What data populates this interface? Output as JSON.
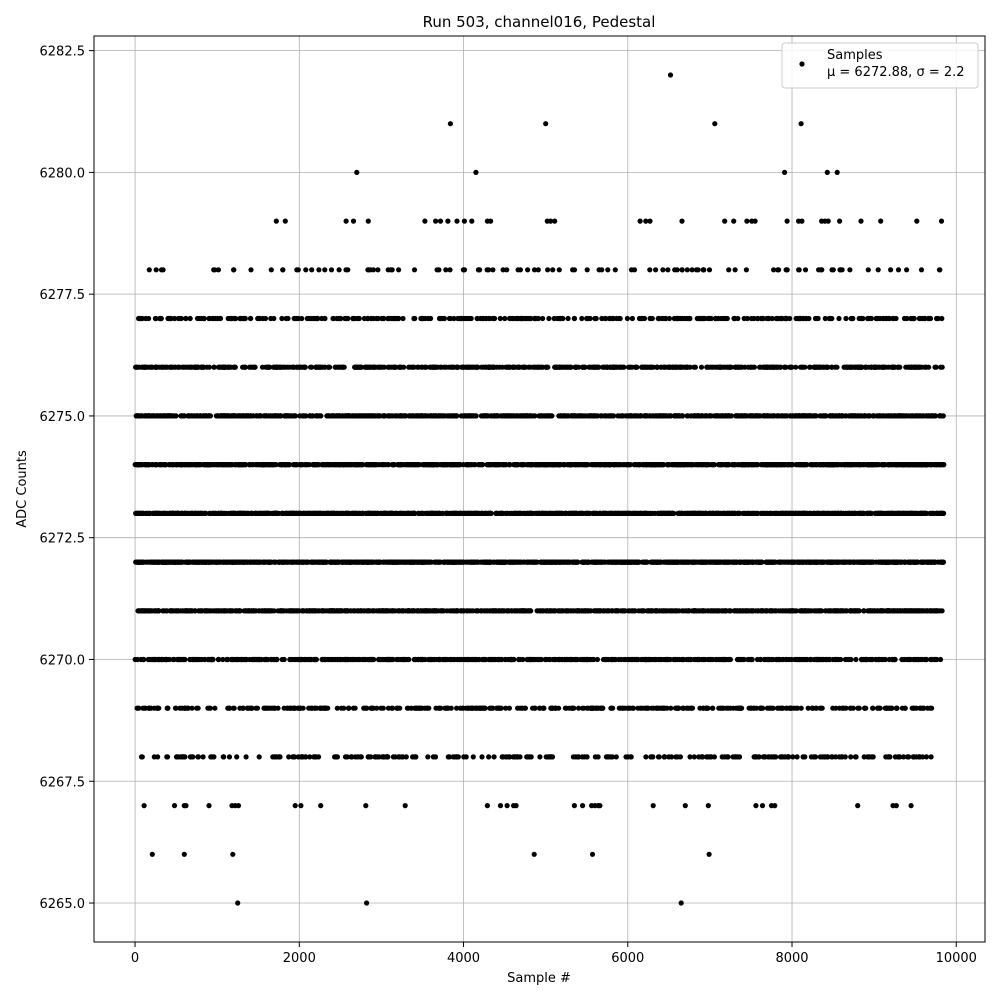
{
  "chart_data": {
    "type": "scatter",
    "title": "Run 503, channel016, Pedestal",
    "xlabel": "Sample #",
    "ylabel": "ADC Counts",
    "xlim": [
      -500,
      10350
    ],
    "ylim": [
      6264.2,
      6282.8
    ],
    "xticks": [
      0,
      2000,
      4000,
      6000,
      8000,
      10000
    ],
    "xtick_labels": [
      "0",
      "2000",
      "4000",
      "6000",
      "8000",
      "10000"
    ],
    "yticks": [
      6265.0,
      6267.5,
      6270.0,
      6272.5,
      6275.0,
      6277.5,
      6280.0,
      6282.5
    ],
    "ytick_labels": [
      "6265.0",
      "6267.5",
      "6270.0",
      "6272.5",
      "6275.0",
      "6277.5",
      "6280.0",
      "6282.5"
    ],
    "grid": true,
    "marker_color": "#000000",
    "legend": {
      "position": "upper-right",
      "entries": [
        "Samples",
        "μ = 6272.88, σ = 2.2"
      ]
    },
    "series": [
      {
        "name": "Samples",
        "color": "#000000",
        "points": [
          [
            1250,
            6265
          ],
          [
            2820,
            6265
          ],
          [
            6650,
            6265
          ],
          [
            210,
            6266
          ],
          [
            600,
            6266
          ],
          [
            1190,
            6266
          ],
          [
            4860,
            6266
          ],
          [
            5570,
            6266
          ],
          [
            6990,
            6266
          ],
          [
            110,
            6267
          ],
          [
            480,
            6267
          ],
          [
            600,
            6267
          ],
          [
            620,
            6267
          ],
          [
            900,
            6267
          ],
          [
            1180,
            6267
          ],
          [
            1220,
            6267
          ],
          [
            1260,
            6267
          ],
          [
            1950,
            6267
          ],
          [
            2020,
            6267
          ],
          [
            2260,
            6267
          ],
          [
            2810,
            6267
          ],
          [
            3290,
            6267
          ],
          [
            4290,
            6267
          ],
          [
            4450,
            6267
          ],
          [
            4530,
            6267
          ],
          [
            4610,
            6267
          ],
          [
            4640,
            6267
          ],
          [
            5350,
            6267
          ],
          [
            5450,
            6267
          ],
          [
            5560,
            6267
          ],
          [
            5600,
            6267
          ],
          [
            5640,
            6267
          ],
          [
            5660,
            6267
          ],
          [
            6310,
            6267
          ],
          [
            6700,
            6267
          ],
          [
            6980,
            6267
          ],
          [
            7560,
            6267
          ],
          [
            7640,
            6267
          ],
          [
            7750,
            6267
          ],
          [
            7790,
            6267
          ],
          [
            8800,
            6267
          ],
          [
            9230,
            6267
          ],
          [
            9270,
            6267
          ],
          [
            9450,
            6267
          ],
          [
            6520,
            6282
          ],
          [
            3840,
            6281
          ],
          [
            5000,
            6281
          ],
          [
            7060,
            6281
          ],
          [
            8110,
            6281
          ],
          [
            2700,
            6280
          ],
          [
            4150,
            6280
          ],
          [
            7910,
            6280
          ],
          [
            8430,
            6280
          ],
          [
            8550,
            6280
          ],
          [
            1720,
            6279
          ],
          [
            1830,
            6279
          ],
          [
            2570,
            6279
          ],
          [
            2660,
            6279
          ],
          [
            2840,
            6279
          ],
          [
            3530,
            6279
          ],
          [
            3660,
            6279
          ],
          [
            3720,
            6279
          ],
          [
            3810,
            6279
          ],
          [
            3920,
            6279
          ],
          [
            4010,
            6279
          ],
          [
            4100,
            6279
          ],
          [
            4290,
            6279
          ],
          [
            4330,
            6279
          ],
          [
            5020,
            6279
          ],
          [
            5060,
            6279
          ],
          [
            5110,
            6279
          ],
          [
            6150,
            6279
          ],
          [
            6220,
            6279
          ],
          [
            6270,
            6279
          ],
          [
            6660,
            6279
          ],
          [
            7180,
            6279
          ],
          [
            7290,
            6279
          ],
          [
            7450,
            6279
          ],
          [
            7510,
            6279
          ],
          [
            7550,
            6279
          ],
          [
            7940,
            6279
          ],
          [
            8080,
            6279
          ],
          [
            8120,
            6279
          ],
          [
            8360,
            6279
          ],
          [
            8400,
            6279
          ],
          [
            8440,
            6279
          ],
          [
            8580,
            6279
          ],
          [
            8840,
            6279
          ],
          [
            9080,
            6279
          ],
          [
            9520,
            6279
          ],
          [
            9820,
            6279
          ]
        ],
        "bands": [
          {
            "y": 6278,
            "count": 110,
            "spread": [
              120,
              9840
            ]
          },
          {
            "y": 6277,
            "count": 380,
            "spread": [
              0,
              9850
            ]
          },
          {
            "y": 6276,
            "count": 650,
            "spread": [
              0,
              9850
            ]
          },
          {
            "y": 6275,
            "count": 900,
            "spread": [
              0,
              9850
            ]
          },
          {
            "y": 6274,
            "count": 1100,
            "spread": [
              0,
              9850
            ]
          },
          {
            "y": 6273,
            "count": 1200,
            "spread": [
              0,
              9850
            ]
          },
          {
            "y": 6272,
            "count": 1150,
            "spread": [
              0,
              9850
            ]
          },
          {
            "y": 6271,
            "count": 950,
            "spread": [
              0,
              9850
            ]
          },
          {
            "y": 6270,
            "count": 700,
            "spread": [
              0,
              9850
            ]
          },
          {
            "y": 6269,
            "count": 420,
            "spread": [
              0,
              9700
            ]
          },
          {
            "y": 6268,
            "count": 260,
            "spread": [
              60,
              9700
            ]
          }
        ]
      }
    ]
  }
}
